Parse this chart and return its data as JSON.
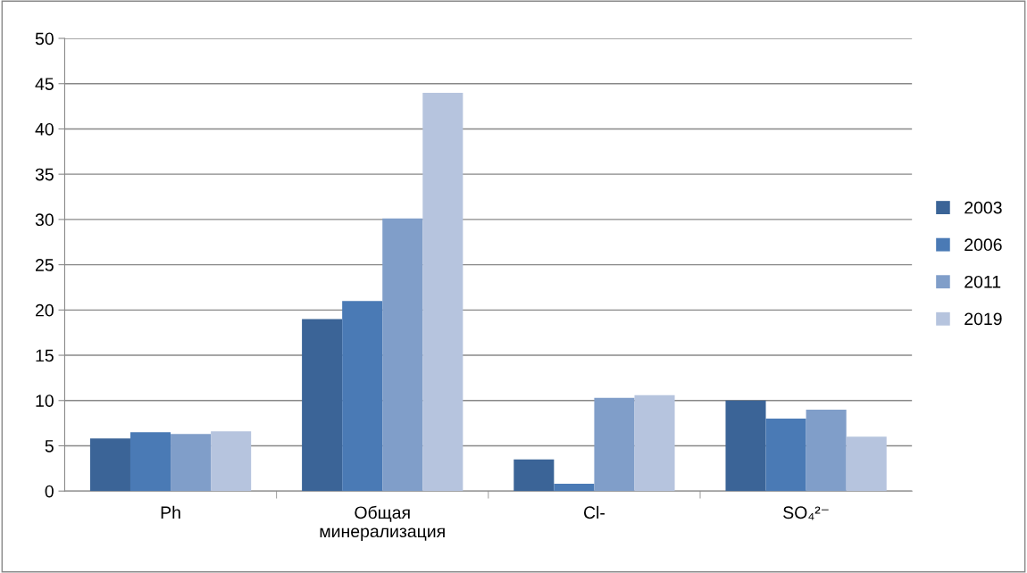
{
  "chart_data": {
    "type": "bar",
    "categories": [
      "Ph",
      "Общая\nминерализация",
      "Cl-",
      "SO₄²⁻"
    ],
    "series": [
      {
        "name": "2003",
        "color": "#3b6497",
        "values": [
          5.8,
          19,
          3.5,
          10
        ]
      },
      {
        "name": "2006",
        "color": "#4a7ab5",
        "values": [
          6.5,
          21,
          0.8,
          8
        ]
      },
      {
        "name": "2011",
        "color": "#809ec9",
        "values": [
          6.3,
          30.1,
          10.3,
          9
        ]
      },
      {
        "name": "2019",
        "color": "#b6c4de",
        "values": [
          6.6,
          44,
          10.6,
          6
        ]
      }
    ],
    "ylim": [
      0,
      50
    ],
    "yticks": [
      0,
      5,
      10,
      15,
      20,
      25,
      30,
      35,
      40,
      45,
      50
    ],
    "grid": "y",
    "legend": "right"
  }
}
